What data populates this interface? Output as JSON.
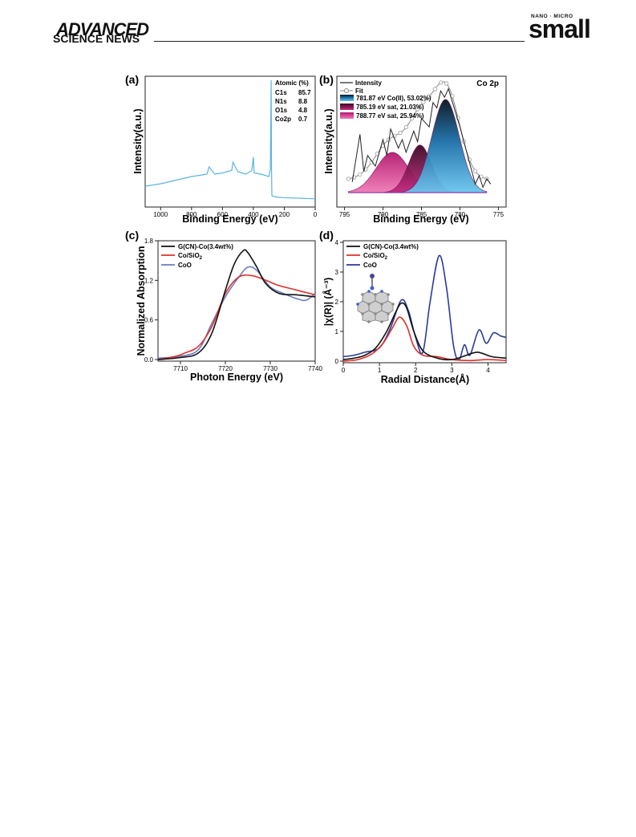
{
  "header": {
    "journal_top": "ADVANCED",
    "journal_bottom": "SCIENCE NEWS",
    "brand_small_prefix": "NANO · MICRO",
    "brand_small": "small"
  },
  "panel_a": {
    "label": "(a)",
    "xlabel": "Binding Energy (eV)",
    "ylabel": "Intensity(a.u.)",
    "xticks": [
      "1000",
      "800",
      "600",
      "400",
      "200",
      "0"
    ],
    "table_header": "Atomic (%)",
    "table_rows": [
      {
        "element": "C1s",
        "value": "85.7"
      },
      {
        "element": "N1s",
        "value": "8.8"
      },
      {
        "element": "O1s",
        "value": "4.8"
      },
      {
        "element": "Co2p",
        "value": "0.7"
      }
    ]
  },
  "panel_b": {
    "label": "(b)",
    "title": "Co 2p",
    "xlabel": "Binding Energy (eV)",
    "ylabel": "Intensity(a.u.)",
    "xticks": [
      "795",
      "790",
      "785",
      "780",
      "775"
    ],
    "legend": [
      "Intensity",
      "Fit",
      "781.87 eV Co(II), 53.02%)",
      "785.19 eV sat, 21.03%)",
      "788.77 eV sat, 25.94%)"
    ]
  },
  "panel_c": {
    "label": "(c)",
    "xlabel": "Photon Energy (eV)",
    "ylabel": "Normalized Absorption",
    "xticks": [
      "7710",
      "7720",
      "7730",
      "7740"
    ],
    "yticks": [
      "0.0",
      "0.6",
      "1.2",
      "1.8"
    ],
    "legend": [
      "G(CN)-Co(3.4wt%)",
      "Co/SiO",
      "CoO"
    ],
    "legend_subscript": "2"
  },
  "panel_d": {
    "label": "(d)",
    "xlabel": "Radial Distance(Å)",
    "ylabel": "|χ(R)| (Å⁻³)",
    "xticks": [
      "0",
      "1",
      "2",
      "3",
      "4"
    ],
    "yticks": [
      "0",
      "1",
      "2",
      "3",
      "4"
    ],
    "legend": [
      "G(CN)-Co(3.4wt%)",
      "Co/SiO",
      "CoO"
    ],
    "legend_subscript": "2"
  },
  "colors": {
    "survey": "#5ab4e0",
    "black": "#111111",
    "red": "#e0302a",
    "blue_line": "#6b7cc4",
    "navy": "#2a3a9a",
    "co2": "#1a8fd0",
    "sat1": "#b4186e",
    "sat2": "#e0489a"
  },
  "chart_data": [
    {
      "type": "line",
      "panel": "a",
      "xlabel": "Binding Energy (eV)",
      "ylabel": "Intensity(a.u.)",
      "xlim": [
        1100,
        0
      ],
      "series": [
        {
          "name": "XPS survey",
          "x": [
            1100,
            1000,
            900,
            800,
            700,
            687,
            650,
            600,
            540,
            532,
            500,
            450,
            410,
            400,
            395,
            350,
            300,
            290,
            285,
            283,
            280,
            250,
            200,
            100,
            0
          ],
          "y": [
            0.12,
            0.14,
            0.17,
            0.2,
            0.22,
            0.28,
            0.22,
            0.23,
            0.25,
            0.32,
            0.24,
            0.22,
            0.25,
            0.36,
            0.23,
            0.22,
            0.2,
            0.26,
            1.0,
            0.3,
            0.04,
            0.03,
            0.025,
            0.02,
            0.015
          ]
        }
      ]
    },
    {
      "type": "area",
      "panel": "b",
      "xlabel": "Binding Energy (eV)",
      "ylabel": "Intensity(a.u.)",
      "xlim": [
        796,
        774
      ],
      "series": [
        {
          "name": "Intensity",
          "x": [
            794,
            793,
            792.5,
            792,
            791,
            790,
            789.5,
            789,
            788,
            787.5,
            787,
            786,
            785.5,
            785,
            784,
            783.5,
            783,
            782.5,
            782,
            781.5,
            781,
            780,
            779,
            778,
            777.5,
            777,
            776.5,
            776
          ],
          "y": [
            0.1,
            0.55,
            0.2,
            0.35,
            0.25,
            0.5,
            0.35,
            0.6,
            0.42,
            0.5,
            0.38,
            0.58,
            0.48,
            0.7,
            0.62,
            0.85,
            0.8,
            0.96,
            0.9,
            0.98,
            0.86,
            0.62,
            0.35,
            0.08,
            0.16,
            0.05,
            0.13,
            0.08
          ]
        },
        {
          "name": "781.87 eV Co(II), 53.02%)",
          "center": 781.87,
          "height": 0.88,
          "fwhm": 4.2
        },
        {
          "name": "785.19 eV sat, 21.03%)",
          "center": 785.19,
          "height": 0.45,
          "fwhm": 3.5
        },
        {
          "name": "788.77 eV sat, 25.94%)",
          "center": 788.77,
          "height": 0.38,
          "fwhm": 5.0
        }
      ]
    },
    {
      "type": "line",
      "panel": "c",
      "xlabel": "Photon Energy (eV)",
      "ylabel": "Normalized Absorption",
      "xlim": [
        7705,
        7740
      ],
      "ylim": [
        0,
        1.8
      ],
      "series": [
        {
          "name": "G(CN)-Co(3.4wt%)",
          "x": [
            7705,
            7710,
            7714,
            7717,
            7720,
            7722,
            7724,
            7725,
            7727,
            7729,
            7732,
            7736,
            7740
          ],
          "y": [
            0.0,
            0.03,
            0.1,
            0.4,
            1.05,
            1.45,
            1.65,
            1.62,
            1.4,
            1.15,
            1.0,
            0.98,
            0.95
          ]
        },
        {
          "name": "Co/SiO2",
          "x": [
            7705,
            7709,
            7711,
            7714,
            7717,
            7720,
            7723,
            7726,
            7729,
            7732,
            7736,
            7740
          ],
          "y": [
            0.0,
            0.05,
            0.1,
            0.2,
            0.5,
            1.0,
            1.25,
            1.27,
            1.2,
            1.12,
            1.05,
            0.98
          ]
        },
        {
          "name": "CoO",
          "x": [
            7705,
            7710,
            7714,
            7717,
            7720,
            7723,
            7725,
            7727,
            7730,
            7733,
            7736,
            7738,
            7740
          ],
          "y": [
            0.02,
            0.05,
            0.15,
            0.55,
            0.95,
            1.25,
            1.4,
            1.35,
            1.1,
            1.0,
            0.92,
            0.9,
            1.0
          ]
        }
      ]
    },
    {
      "type": "line",
      "panel": "d",
      "xlabel": "Radial Distance(Å)",
      "ylabel": "|χ(R)| (Å⁻³)",
      "xlim": [
        0,
        4.5
      ],
      "ylim": [
        0,
        4
      ],
      "series": [
        {
          "name": "G(CN)-Co(3.4wt%)",
          "x": [
            0,
            0.3,
            0.6,
            0.9,
            1.2,
            1.45,
            1.6,
            1.75,
            1.95,
            2.2,
            2.6,
            3.0,
            3.3,
            3.7,
            4.1,
            4.5
          ],
          "y": [
            0.05,
            0.1,
            0.2,
            0.45,
            1.0,
            1.65,
            1.95,
            1.8,
            1.0,
            0.35,
            0.1,
            0.05,
            0.15,
            0.3,
            0.15,
            0.1
          ]
        },
        {
          "name": "Co/SiO2",
          "x": [
            0,
            0.4,
            0.8,
            1.1,
            1.35,
            1.55,
            1.75,
            1.95,
            2.2,
            2.6,
            3.0,
            3.5,
            4.0,
            4.5
          ],
          "y": [
            0.0,
            0.05,
            0.25,
            0.6,
            1.1,
            1.48,
            1.2,
            0.5,
            0.2,
            0.15,
            0.05,
            0.02,
            0.05,
            0.02
          ]
        },
        {
          "name": "CoO",
          "x": [
            0,
            0.3,
            0.6,
            1.0,
            1.3,
            1.6,
            1.8,
            2.0,
            2.2,
            2.4,
            2.65,
            2.85,
            3.05,
            3.2,
            3.35,
            3.5,
            3.75,
            3.95,
            4.15,
            4.35,
            4.5
          ],
          "y": [
            0.15,
            0.2,
            0.3,
            0.45,
            1.1,
            2.05,
            1.7,
            0.8,
            0.3,
            2.0,
            3.55,
            2.5,
            0.5,
            0.05,
            0.55,
            0.2,
            1.05,
            0.6,
            0.95,
            0.85,
            0.8
          ]
        }
      ]
    }
  ]
}
